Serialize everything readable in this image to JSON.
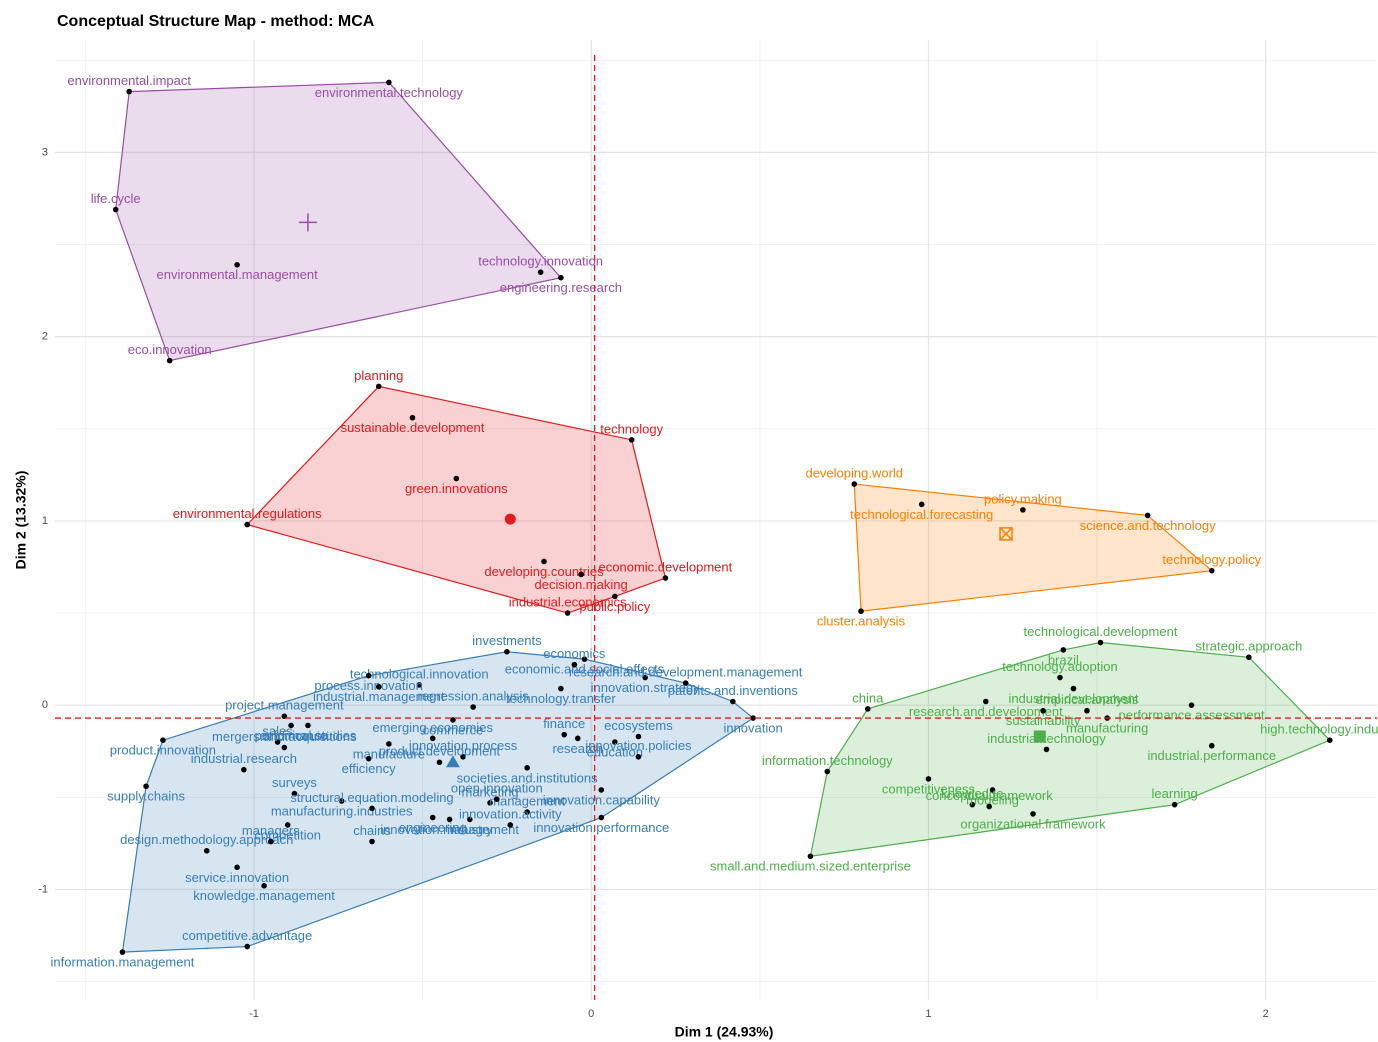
{
  "chart_data": {
    "type": "scatter",
    "title": "Conceptual Structure Map - method: MCA",
    "xlabel": "Dim 1 (24.93%)",
    "ylabel": "Dim 2 (13.32%)",
    "xlim": [
      -1.59,
      2.33
    ],
    "ylim": [
      -1.6,
      3.61
    ],
    "xticks": [
      -1,
      0,
      1,
      2
    ],
    "yticks": [
      -1,
      0,
      1,
      2,
      3
    ],
    "minor_xticks": [
      -1.5,
      -0.5,
      0.5,
      1.5
    ],
    "minor_yticks": [
      -1.5,
      -0.5,
      0.5,
      1.5,
      2.5,
      3.5
    ],
    "grid": true,
    "reference_lines": {
      "x": 0.01,
      "y": -0.07
    },
    "clusters": [
      {
        "color": "#984ea3",
        "marker": "plus",
        "labels": [
          "environmental.impact",
          "environmental.technology",
          "life.cycle",
          "environmental.management",
          "technology.innovation",
          "engineering.research",
          "eco.innovation"
        ],
        "x": [
          -1.37,
          -0.6,
          -1.41,
          -1.05,
          -0.15,
          -0.09,
          -1.25
        ],
        "y": [
          3.33,
          3.38,
          2.69,
          2.39,
          2.35,
          2.32,
          1.87
        ],
        "centroid": [
          -0.84,
          2.62
        ]
      },
      {
        "color": "#e41a1c",
        "marker": "circle",
        "labels": [
          "planning",
          "sustainable.development",
          "technology",
          "green.innovations",
          "environmental.regulations",
          "developing.countries",
          "economic.development",
          "decision.making",
          "industrial.economics",
          "public.policy"
        ],
        "x": [
          -0.63,
          -0.53,
          0.12,
          -0.4,
          -1.02,
          -0.14,
          0.22,
          -0.03,
          -0.07,
          0.07
        ],
        "y": [
          1.73,
          1.56,
          1.44,
          1.23,
          0.98,
          0.78,
          0.69,
          0.71,
          0.5,
          0.59
        ],
        "centroid": [
          -0.24,
          1.01
        ]
      },
      {
        "color": "#ff7f00",
        "marker": "square-cross",
        "labels": [
          "developing.world",
          "technological.forecasting",
          "policy.making",
          "science.and.technology",
          "technology.policy",
          "cluster.analysis"
        ],
        "x": [
          0.78,
          0.98,
          1.28,
          1.65,
          1.84,
          0.8
        ],
        "y": [
          1.2,
          1.09,
          1.06,
          1.03,
          0.73,
          0.51
        ],
        "centroid": [
          1.23,
          0.93
        ]
      },
      {
        "color": "#4daf4a",
        "marker": "square",
        "labels": [
          "technology.adoption",
          "brazil",
          "technological.development",
          "industrial.development",
          "strategic.approach",
          "research.and.development",
          "empirical.analysis",
          "performance.assessment",
          "china",
          "sustainability",
          "industrial.technology",
          "manufacturing",
          "high.technology.industry",
          "industrial.performance",
          "information.technology",
          "competitiveness",
          "knowledge",
          "modeling",
          "conceptual.framework",
          "organizational.framework",
          "learning",
          "small.and.medium.sized.enterprise"
        ],
        "x": [
          1.39,
          1.4,
          1.51,
          1.43,
          1.95,
          1.17,
          1.47,
          1.78,
          0.82,
          1.34,
          1.35,
          1.53,
          2.19,
          1.84,
          0.7,
          1.0,
          1.13,
          1.19,
          1.18,
          1.31,
          1.73,
          0.65
        ],
        "y": [
          0.15,
          0.3,
          0.34,
          0.09,
          0.26,
          0.02,
          -0.03,
          0.0,
          -0.02,
          -0.03,
          -0.24,
          -0.07,
          -0.19,
          -0.22,
          -0.36,
          -0.4,
          -0.54,
          -0.46,
          -0.55,
          -0.59,
          -0.54,
          -0.82
        ],
        "centroid": [
          1.33,
          -0.17
        ]
      },
      {
        "color": "#377eb8",
        "marker": "triangle",
        "labels": [
          "investments",
          "economic.and.social.effects",
          "economics",
          "performance",
          "technological.innovation",
          "process.innovation",
          "emerging.economies",
          "innovation.strategy",
          "research.and.development.management",
          "empirical.studies",
          "sales",
          "industrial.management",
          "regression.analysis",
          "technology.transfer",
          "patents.and.inventions",
          "product.innovation",
          "project.management",
          "commerce",
          "finance",
          "research",
          "ecosystems",
          "innovation",
          "mergers.and.acquisitions",
          "manufacture",
          "innovation.process",
          "education",
          "industrial.research",
          "efficiency",
          "product.development",
          "societies.and.institutions",
          "innovation.policies",
          "supply.chains",
          "surveys",
          "manufacturing.industries",
          "marketing",
          "innovation.capability",
          "structural.equation.modeling",
          "innovation.management",
          "management",
          "innovation.performance",
          "design.methodology.approach",
          "competition",
          "chains",
          "industry",
          "innovation.activity",
          "service.innovation",
          "managers",
          "engineering",
          "open.innovation",
          "knowledge.management",
          "competitive.advantage",
          "information.management"
        ],
        "x": [
          -0.25,
          -0.02,
          -0.05,
          -0.89,
          -0.51,
          -0.66,
          -0.47,
          0.16,
          0.28,
          -0.84,
          -0.93,
          -0.63,
          -0.35,
          -0.09,
          0.42,
          -1.27,
          -0.91,
          -0.41,
          -0.08,
          -0.04,
          0.14,
          0.48,
          -0.91,
          -0.6,
          -0.38,
          0.07,
          -1.03,
          -0.66,
          -0.45,
          -0.19,
          0.14,
          -1.32,
          -0.88,
          -0.74,
          -0.3,
          0.03,
          -0.65,
          -0.42,
          -0.19,
          0.03,
          -1.14,
          -0.9,
          -0.65,
          -0.36,
          -0.24,
          -1.05,
          -0.95,
          -0.47,
          -0.28,
          -0.97,
          -1.02,
          -1.39
        ],
        "y": [
          0.29,
          0.25,
          0.22,
          -0.11,
          0.11,
          0.16,
          -0.18,
          0.15,
          0.12,
          -0.11,
          -0.2,
          0.1,
          -0.01,
          0.09,
          0.02,
          -0.19,
          -0.06,
          -0.08,
          -0.16,
          -0.18,
          -0.17,
          -0.07,
          -0.23,
          -0.21,
          -0.28,
          -0.2,
          -0.35,
          -0.29,
          -0.31,
          -0.34,
          -0.28,
          -0.44,
          -0.48,
          -0.52,
          -0.53,
          -0.46,
          -0.56,
          -0.62,
          -0.58,
          -0.61,
          -0.79,
          -0.65,
          -0.74,
          -0.62,
          -0.65,
          -0.88,
          -0.74,
          -0.61,
          -0.51,
          -0.98,
          -1.31,
          -1.34
        ],
        "centroid": [
          -0.41,
          -0.31
        ]
      }
    ]
  }
}
